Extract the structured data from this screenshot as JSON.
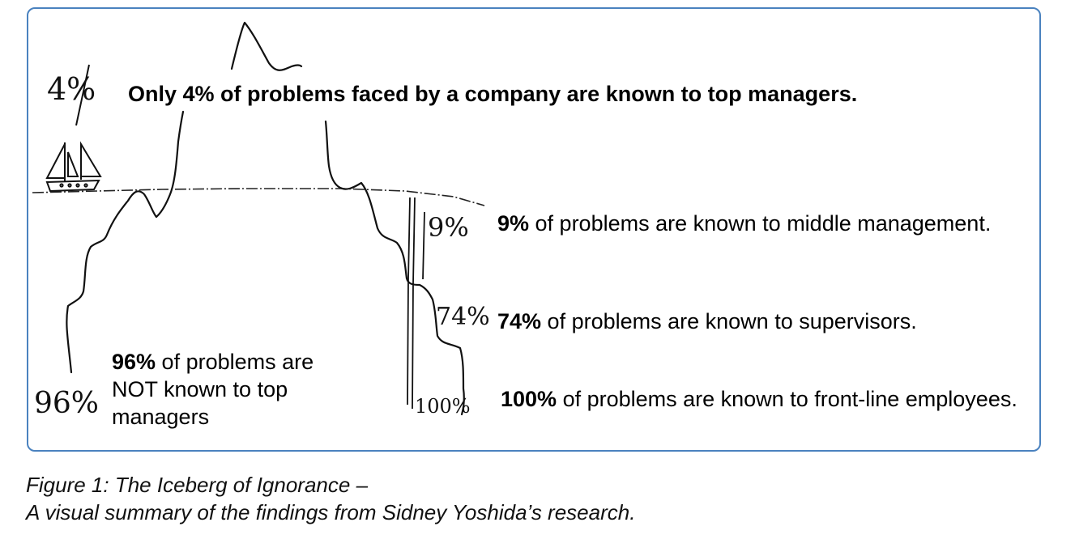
{
  "headline": {
    "bold_text": "Only 4% of problems faced by a company are known to top managers."
  },
  "levels": [
    {
      "hand_label": "4%"
    },
    {
      "hand_label": "9%",
      "bold": "9%",
      "rest": " of problems are known to middle management."
    },
    {
      "hand_label": "74%",
      "bold": "74%",
      "rest": " of problems are known to supervisors."
    },
    {
      "hand_label": "100%",
      "bold": "100%",
      "rest": " of problems are known to front-line employees."
    }
  ],
  "hidden": {
    "hand_label": "96%",
    "bold": "96%",
    "line1_rest": " of  problems are",
    "line2": "NOT known to top",
    "line3": "managers"
  },
  "caption": {
    "line1": "Figure 1: The Iceberg of Ignorance –",
    "line2": "A visual summary of the findings from Sidney Yoshida’s research."
  },
  "colors": {
    "frame_border": "#4a82bf",
    "ink": "#000000"
  }
}
